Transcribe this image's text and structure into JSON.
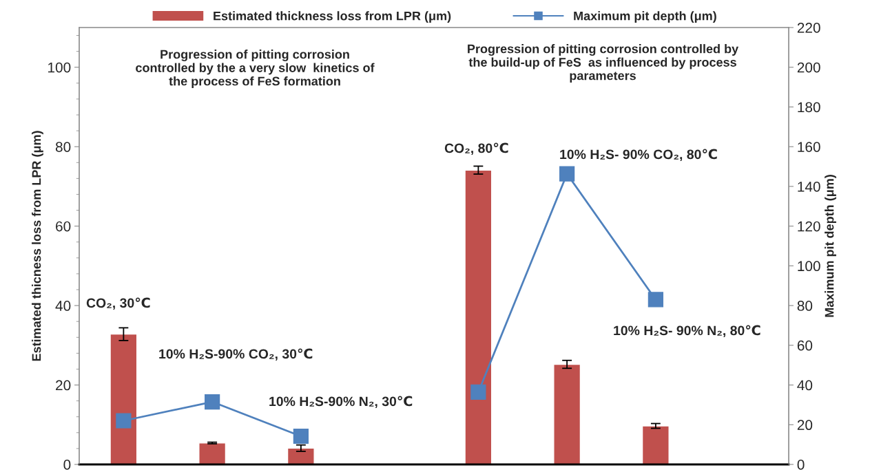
{
  "chart_data": {
    "type": "bar",
    "categories": [
      null,
      null,
      null,
      null,
      null,
      null,
      null,
      null
    ],
    "series": [
      {
        "name": "Estimated thickness loss from LPR (μm)",
        "color": "#c0504d",
        "values": [
          32.8,
          5.4,
          4.1,
          null,
          74.1,
          25.2,
          9.7,
          null
        ],
        "errors": [
          1.6,
          0.2,
          0.8,
          null,
          1.0,
          1.0,
          0.6,
          null
        ]
      },
      {
        "name": "Maximum pit depth (μm)",
        "type": "line",
        "axis": "y2",
        "color": "#4f81bd",
        "marker": "square",
        "values": [
          22,
          31.5,
          14.2,
          null,
          36.4,
          146.3,
          83,
          null
        ]
      }
    ],
    "ylabel": "Estimated thicness loss from LPR (μm)",
    "y2label": "Maximum pit depth (μm)",
    "ylim": [
      0,
      110
    ],
    "yticks": [
      0,
      20,
      40,
      60,
      80,
      100
    ],
    "y2lim": [
      0,
      220
    ],
    "y2ticks": [
      0,
      20,
      40,
      60,
      80,
      100,
      120,
      140,
      160,
      180,
      200,
      220
    ],
    "legend": "top",
    "grid": false,
    "annotations": [
      "Progression of pitting corrosion\ncontrolled by the a very slow  kinetics of\nthe process of FeS formation",
      "Progression of pitting corrosion controlled by\nthe build-up of FeS  as influenced by process\nparameters",
      "CO₂, 30℃",
      "10% H₂S-90% CO₂, 30℃",
      "10% H₂S-90% N₂, 30℃",
      "CO₂, 80℃",
      "10% H₂S- 90% CO₂, 80℃",
      "10% H₂S- 90% N₂, 80℃"
    ]
  }
}
